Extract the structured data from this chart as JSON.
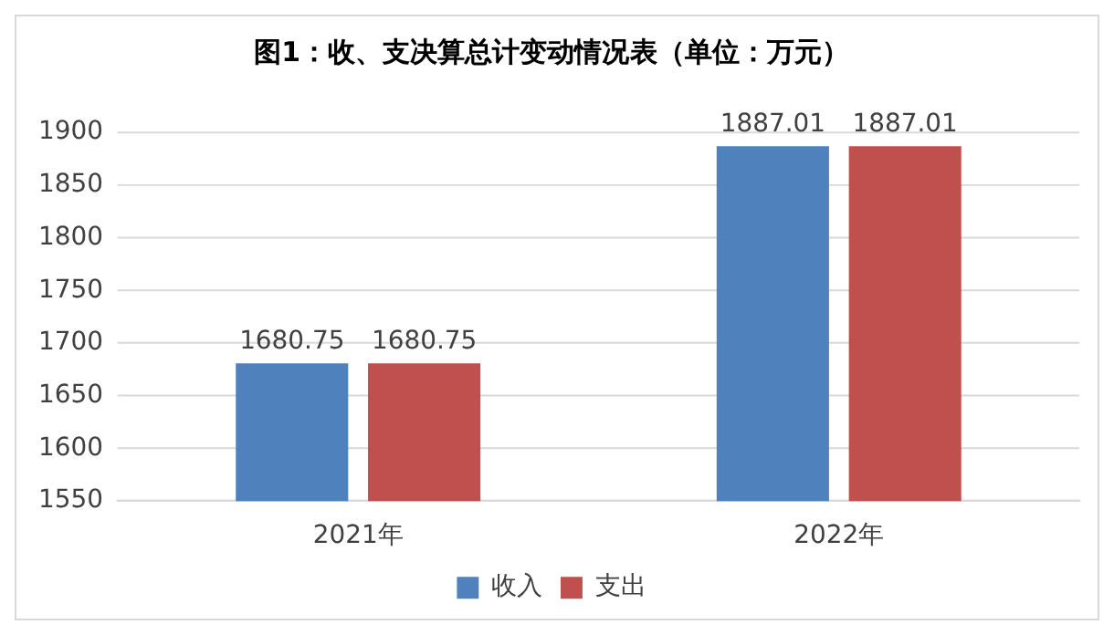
{
  "chart_data": {
    "type": "bar",
    "title": "图1：收、支决算总计变动情况表（单位：万元）",
    "categories": [
      "2021年",
      "2022年"
    ],
    "series": [
      {
        "name": "收入",
        "color": "#4f81bd",
        "values": [
          1680.75,
          1887.01
        ]
      },
      {
        "name": "支出",
        "color": "#c0504d",
        "values": [
          1680.75,
          1887.01
        ]
      }
    ],
    "ylim": [
      1550,
      1900
    ],
    "yticks": [
      1550,
      1600,
      1650,
      1700,
      1750,
      1800,
      1850,
      1900
    ],
    "grid": "y",
    "legend": "bottom",
    "data_labels": true
  }
}
